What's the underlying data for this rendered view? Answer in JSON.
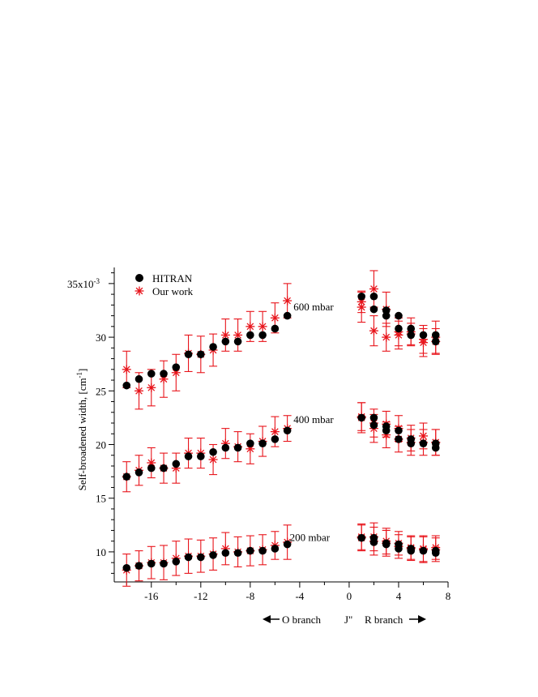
{
  "chart_data": {
    "type": "scatter",
    "title": "",
    "xlabel": "J\"",
    "ylabel": "Self-broadened width, [cm-1]",
    "ylabel_main": "Self-broadened width, [cm",
    "ylabel_sup": "-1",
    "ylabel_end": "]",
    "xlim": [
      -19,
      8
    ],
    "ylim": [
      7.2,
      36.5
    ],
    "x_ticks": [
      -16,
      -12,
      -8,
      -4,
      0,
      4,
      8
    ],
    "y_ticks": [
      10,
      15,
      20,
      25,
      30,
      35
    ],
    "y_tick_labels": [
      "10",
      "15",
      "20",
      "25",
      "30",
      "35x10"
    ],
    "y_scale_exponent": "-3",
    "grid": false,
    "legend_position": "top-left",
    "branch_labels": {
      "left": "O branch",
      "right": "R branch"
    },
    "annotations": [
      {
        "text": "600 mbar",
        "x": -4.5,
        "y": 32.5
      },
      {
        "text": "400 mbar",
        "x": -4.5,
        "y": 22.0
      },
      {
        "text": "200 mbar",
        "x": -4.8,
        "y": 11.0
      }
    ],
    "series": [
      {
        "name": "HITRAN",
        "marker": "circle",
        "color": "#000000",
        "groups": [
          {
            "x": [
              -18,
              -17,
              -16,
              -15,
              -14,
              -13,
              -12,
              -11,
              -10,
              -9,
              -8,
              -7,
              -6,
              -5,
              1,
              2,
              2,
              3,
              3,
              4,
              4,
              5,
              5,
              6,
              7,
              7
            ],
            "y": [
              25.5,
              26.1,
              26.6,
              26.6,
              27.2,
              28.4,
              28.4,
              29.1,
              29.6,
              29.6,
              30.2,
              30.2,
              30.8,
              32.0,
              33.8,
              33.8,
              32.6,
              32.5,
              32.0,
              32.0,
              30.8,
              30.8,
              30.2,
              30.2,
              30.2,
              29.6
            ]
          },
          {
            "x": [
              -18,
              -17,
              -16,
              -15,
              -14,
              -13,
              -12,
              -11,
              -10,
              -9,
              -8,
              -7,
              -6,
              -5,
              1,
              2,
              2,
              3,
              3,
              4,
              4,
              5,
              5,
              6,
              7,
              7
            ],
            "y": [
              17.0,
              17.4,
              17.8,
              17.8,
              18.2,
              18.9,
              18.9,
              19.3,
              19.7,
              19.7,
              20.1,
              20.1,
              20.5,
              21.3,
              22.5,
              22.5,
              21.8,
              21.7,
              21.3,
              21.3,
              20.5,
              20.5,
              20.1,
              20.1,
              20.1,
              19.7
            ]
          },
          {
            "x": [
              -18,
              -17,
              -16,
              -15,
              -14,
              -13,
              -12,
              -11,
              -10,
              -9,
              -8,
              -7,
              -6,
              -5,
              1,
              2,
              2,
              3,
              3,
              4,
              4,
              5,
              5,
              6,
              7,
              7
            ],
            "y": [
              8.5,
              8.7,
              8.9,
              8.9,
              9.1,
              9.5,
              9.5,
              9.7,
              9.9,
              9.9,
              10.1,
              10.1,
              10.3,
              10.7,
              11.3,
              11.3,
              10.9,
              10.8,
              10.7,
              10.7,
              10.3,
              10.3,
              10.1,
              10.1,
              10.1,
              9.9
            ]
          }
        ]
      },
      {
        "name": "Our work",
        "marker": "star",
        "color": "#e8141b",
        "groups": [
          {
            "x": [
              -18,
              -17,
              -16,
              -15,
              -14,
              -13,
              -12,
              -11,
              -10,
              -9,
              -8,
              -7,
              -6,
              -5,
              1,
              1,
              2,
              2,
              3,
              3,
              4,
              4,
              5,
              5,
              6,
              6,
              7,
              7
            ],
            "y": [
              27.0,
              25.0,
              25.3,
              26.1,
              26.7,
              28.5,
              28.4,
              28.8,
              30.2,
              30.2,
              31.0,
              31.0,
              31.8,
              33.4,
              32.8,
              33.3,
              34.5,
              30.6,
              32.6,
              30.0,
              30.5,
              30.2,
              30.5,
              30.3,
              29.8,
              29.5,
              30.0,
              29.6
            ],
            "err": [
              1.7,
              1.7,
              1.7,
              1.7,
              1.7,
              1.7,
              1.7,
              1.5,
              1.5,
              1.5,
              1.4,
              1.4,
              1.4,
              1.6,
              1.4,
              1.0,
              1.7,
              1.4,
              1.6,
              1.3,
              1.3,
              1.3,
              1.3,
              1.0,
              1.3,
              1.3,
              1.5,
              1.2
            ]
          },
          {
            "x": [
              -18,
              -17,
              -16,
              -15,
              -14,
              -13,
              -12,
              -11,
              -10,
              -9,
              -8,
              -7,
              -6,
              -5,
              1,
              1,
              2,
              2,
              3,
              3,
              4,
              4,
              5,
              5,
              6,
              6,
              7,
              7
            ],
            "y": [
              17.0,
              17.6,
              18.3,
              17.8,
              17.8,
              19.2,
              19.2,
              18.6,
              20.1,
              19.8,
              19.6,
              20.3,
              21.2,
              21.5,
              22.5,
              22.6,
              22.0,
              21.5,
              21.9,
              20.9,
              21.5,
              20.5,
              20.6,
              20.2,
              20.8,
              20.2,
              20.2,
              20.2
            ],
            "err": [
              1.4,
              1.4,
              1.4,
              1.4,
              1.4,
              1.4,
              1.4,
              1.4,
              1.4,
              1.4,
              1.4,
              1.4,
              1.4,
              1.2,
              1.4,
              1.3,
              1.3,
              1.3,
              1.2,
              1.2,
              1.2,
              1.2,
              1.2,
              1.2,
              1.2,
              1.2,
              1.2,
              1.2
            ]
          },
          {
            "x": [
              -18,
              -17,
              -16,
              -15,
              -14,
              -13,
              -12,
              -11,
              -10,
              -9,
              -8,
              -7,
              -6,
              -5,
              1,
              1,
              2,
              2,
              3,
              3,
              4,
              4,
              5,
              5,
              6,
              6,
              7,
              7
            ],
            "y": [
              8.3,
              8.7,
              9.0,
              9.0,
              9.4,
              9.6,
              9.6,
              9.8,
              10.3,
              10.0,
              10.1,
              10.2,
              10.6,
              10.9,
              11.4,
              11.3,
              11.4,
              11.0,
              11.0,
              10.8,
              10.8,
              10.5,
              10.4,
              10.3,
              10.3,
              10.2,
              10.4,
              10.2
            ],
            "err": [
              1.5,
              1.4,
              1.5,
              1.6,
              1.6,
              1.6,
              1.5,
              1.5,
              1.5,
              1.4,
              1.4,
              1.4,
              1.3,
              1.6,
              1.2,
              1.2,
              1.3,
              1.3,
              1.2,
              1.2,
              1.1,
              1.1,
              1.1,
              1.1,
              1.2,
              1.2,
              1.1,
              1.1
            ]
          }
        ]
      }
    ]
  }
}
